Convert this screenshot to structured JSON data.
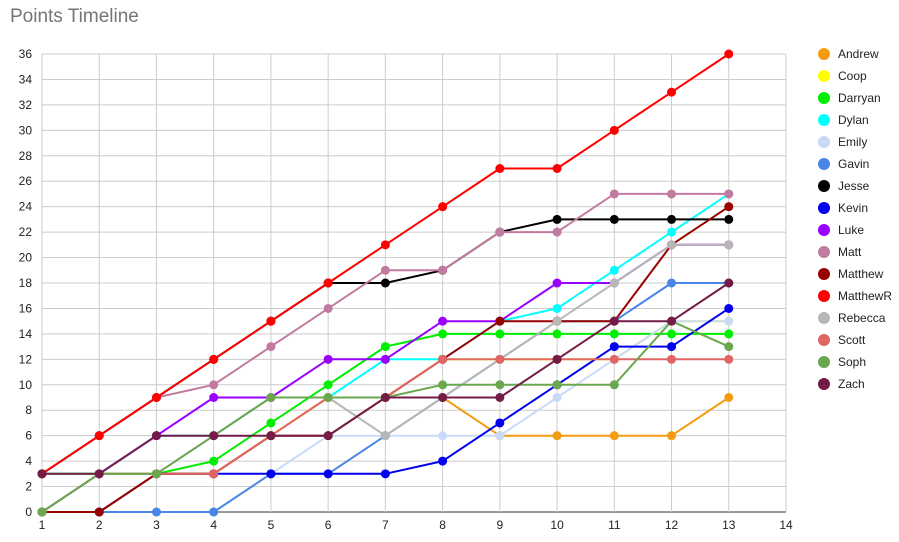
{
  "chart_data": {
    "type": "line",
    "title": "Points Timeline",
    "xlabel": "",
    "ylabel": "",
    "xlim": [
      1,
      14
    ],
    "ylim": [
      0,
      36
    ],
    "x_ticks": [
      1,
      2,
      3,
      4,
      5,
      6,
      7,
      8,
      9,
      10,
      11,
      12,
      13,
      14
    ],
    "y_ticks": [
      0,
      2,
      4,
      6,
      8,
      10,
      12,
      14,
      16,
      18,
      20,
      22,
      24,
      26,
      28,
      30,
      32,
      34,
      36
    ],
    "grid": true,
    "legend": "right",
    "x": [
      1,
      2,
      3,
      4,
      5,
      6,
      7,
      8,
      9,
      10,
      11,
      12,
      13
    ],
    "series": [
      {
        "name": "Andrew",
        "color": "#f39c12",
        "values": [
          0,
          0,
          3,
          3,
          6,
          9,
          9,
          9,
          6,
          6,
          6,
          6,
          9
        ]
      },
      {
        "name": "Coop",
        "color": "#ffff00",
        "values": [
          0,
          0,
          3,
          3,
          6,
          9,
          9,
          12,
          12,
          12,
          12,
          15,
          15
        ]
      },
      {
        "name": "Darryan",
        "color": "#00ee00",
        "values": [
          3,
          3,
          3,
          4,
          7,
          10,
          13,
          14,
          14,
          14,
          14,
          14,
          14
        ]
      },
      {
        "name": "Dylan",
        "color": "#00ffff",
        "values": [
          0,
          3,
          6,
          6,
          9,
          9,
          12,
          12,
          15,
          16,
          19,
          22,
          25
        ]
      },
      {
        "name": "Emily",
        "color": "#c9daf8",
        "values": [
          0,
          0,
          0,
          0,
          3,
          6,
          6,
          6,
          6,
          9,
          12,
          15,
          15
        ]
      },
      {
        "name": "Gavin",
        "color": "#4a86e8",
        "values": [
          0,
          0,
          0,
          0,
          3,
          3,
          6,
          9,
          12,
          15,
          15,
          18,
          18
        ]
      },
      {
        "name": "Jesse",
        "color": "#000000",
        "values": [
          3,
          6,
          9,
          12,
          15,
          18,
          18,
          19,
          22,
          23,
          23,
          23,
          23
        ]
      },
      {
        "name": "Kevin",
        "color": "#0000ee",
        "values": [
          0,
          0,
          3,
          3,
          3,
          3,
          3,
          4,
          7,
          10,
          13,
          13,
          16
        ]
      },
      {
        "name": "Luke",
        "color": "#9900ff",
        "values": [
          0,
          3,
          6,
          9,
          9,
          12,
          12,
          15,
          15,
          18,
          18,
          21,
          21
        ]
      },
      {
        "name": "Matt",
        "color": "#c27ba0",
        "values": [
          3,
          6,
          9,
          10,
          13,
          16,
          19,
          19,
          22,
          22,
          25,
          25,
          25
        ]
      },
      {
        "name": "Matthew",
        "color": "#990000",
        "values": [
          0,
          0,
          3,
          3,
          6,
          6,
          9,
          12,
          15,
          15,
          15,
          21,
          24
        ]
      },
      {
        "name": "MatthewR",
        "color": "#ff0000",
        "values": [
          3,
          6,
          9,
          12,
          15,
          18,
          21,
          24,
          27,
          27,
          30,
          33,
          36
        ]
      },
      {
        "name": "Rebecca",
        "color": "#b7b7b7",
        "values": [
          0,
          3,
          3,
          6,
          9,
          9,
          6,
          9,
          12,
          15,
          18,
          21,
          21
        ]
      },
      {
        "name": "Scott",
        "color": "#e06666",
        "values": [
          0,
          3,
          3,
          3,
          6,
          9,
          9,
          12,
          12,
          12,
          12,
          12,
          12
        ]
      },
      {
        "name": "Soph",
        "color": "#6aa84f",
        "values": [
          0,
          3,
          3,
          6,
          9,
          9,
          9,
          10,
          10,
          10,
          10,
          15,
          13
        ]
      },
      {
        "name": "Zach",
        "color": "#741b47",
        "values": [
          3,
          3,
          6,
          6,
          6,
          6,
          9,
          9,
          9,
          12,
          15,
          15,
          18
        ]
      }
    ]
  }
}
